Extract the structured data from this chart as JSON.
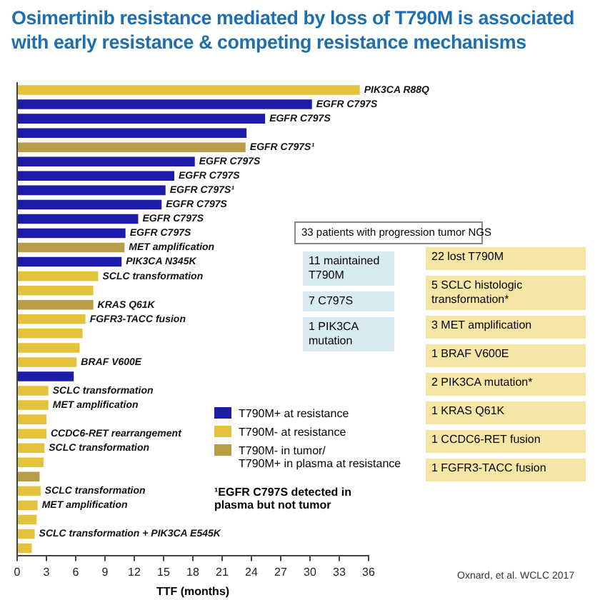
{
  "chart_data": {
    "type": "bar",
    "orientation": "horizontal",
    "stacked": true,
    "title": "Osimertinib resistance mediated by loss of T790M is associated with early resistance & competing resistance mechanisms",
    "xlabel": "TTF (months)",
    "categories": [
      null,
      null,
      null,
      null,
      null,
      null,
      null,
      null,
      null,
      null,
      null,
      null,
      null,
      null,
      null,
      null,
      null,
      null,
      null,
      null,
      null,
      null,
      null,
      null,
      null,
      null,
      null,
      null,
      null,
      null,
      null,
      null,
      null
    ],
    "series": [
      {
        "name": "T790M+ at resistance",
        "color": "#1c1ca8",
        "values": [
          null,
          30.2,
          25.4,
          23.5,
          null,
          18.2,
          16.1,
          15.2,
          14.8,
          12.4,
          11.1,
          null,
          10.7,
          null,
          null,
          null,
          null,
          null,
          null,
          null,
          5.8,
          null,
          null,
          null,
          null,
          null,
          null,
          null,
          null,
          null,
          null,
          null,
          null
        ],
        "value_labels": [
          null,
          "EGFR C797S",
          "EGFR C797S",
          null,
          null,
          "EGFR C797S",
          "EGFR C797S",
          "EGFR C797S¹",
          "EGFR C797S",
          "EGFR C797S",
          "EGFR C797S",
          null,
          "PIK3CA N345K",
          null,
          null,
          null,
          null,
          null,
          null,
          null,
          null,
          null,
          null,
          null,
          null,
          null,
          null,
          null,
          null,
          null,
          null,
          null,
          null
        ]
      },
      {
        "name": "T790M- at resistance",
        "color": "#e3c23e",
        "values": [
          35.1,
          null,
          null,
          null,
          null,
          null,
          null,
          null,
          null,
          null,
          null,
          null,
          null,
          8.3,
          7.8,
          null,
          7.0,
          6.7,
          6.4,
          6.1,
          null,
          3.2,
          3.2,
          3.0,
          3.0,
          2.8,
          2.7,
          null,
          2.4,
          2.1,
          2.0,
          1.8,
          1.5
        ],
        "value_labels": [
          "PIK3CA R88Q",
          null,
          null,
          null,
          null,
          null,
          null,
          null,
          null,
          null,
          null,
          null,
          null,
          "SCLC transformation",
          null,
          null,
          "FGFR3-TACC fusion",
          null,
          null,
          "BRAF V600E",
          null,
          "SCLC transformation",
          "MET amplification",
          null,
          "CCDC6-RET rearrangement",
          "SCLC transformation",
          null,
          null,
          "SCLC transformation",
          "MET amplification",
          null,
          "SCLC transformation + PIK3CA E545K",
          null
        ]
      },
      {
        "name": "T790M- in tumor/\nT790M+ in plasma at resistance",
        "color": "#b89c48",
        "values": [
          null,
          null,
          null,
          null,
          23.4,
          null,
          null,
          null,
          null,
          null,
          null,
          11.0,
          null,
          null,
          null,
          7.8,
          null,
          null,
          null,
          null,
          null,
          null,
          null,
          null,
          null,
          null,
          null,
          2.3,
          null,
          null,
          null,
          null,
          null
        ],
        "value_labels": [
          null,
          null,
          null,
          null,
          "EGFR C797S¹",
          null,
          null,
          null,
          null,
          null,
          null,
          "MET amplification",
          null,
          null,
          null,
          "KRAS Q61K",
          null,
          null,
          null,
          null,
          null,
          null,
          null,
          null,
          null,
          null,
          null,
          null,
          null,
          null,
          null,
          null,
          null
        ]
      }
    ],
    "xlim": [
      0,
      36
    ],
    "xticks": [
      0,
      3,
      6,
      9,
      12,
      15,
      18,
      21,
      24,
      27,
      30,
      33,
      36
    ],
    "tick_labels": "x",
    "grid": false,
    "legend": "bottom right",
    "annotations": [
      "¹EGFR C797S detected in plasma but not tumor",
      "33 patients with progression tumor NGS",
      "11 maintained T790M",
      "7 C797S",
      "1 PIK3CA mutation",
      "22 lost T790M",
      "5 SCLC histologic transformation*",
      "3 MET amplification",
      "1 BRAF V600E",
      "2 PIK3CA mutation*",
      "1 KRAS Q61K",
      "1 CCDC6-RET fusion",
      "1 FGFR3-TACC fusion",
      "Oxnard, et al. WCLC 2017"
    ]
  }
}
